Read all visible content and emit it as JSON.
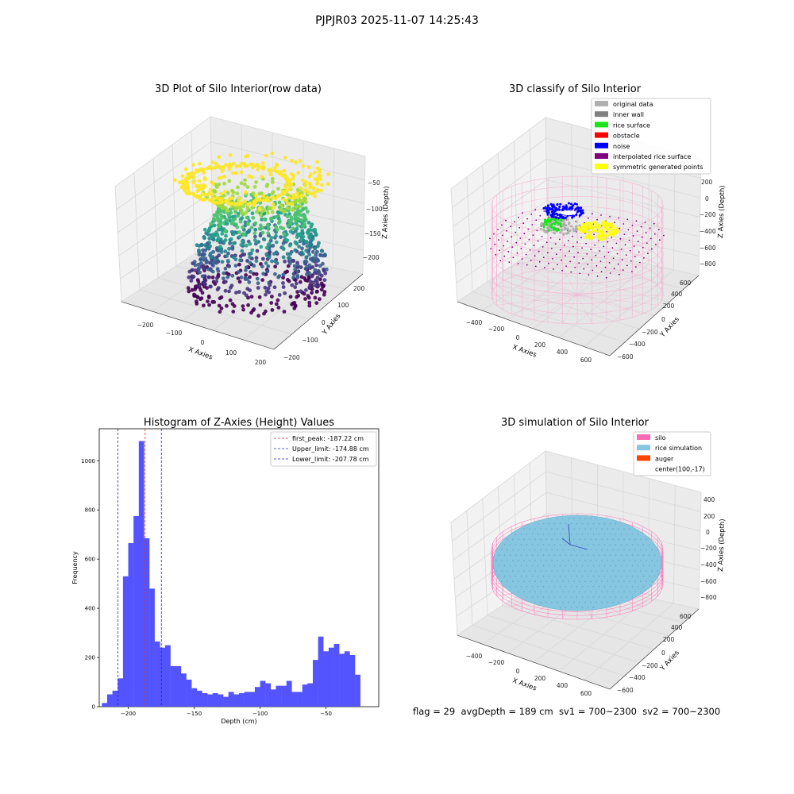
{
  "figure": {
    "title": "PJPJR03 2025-11-07 14:25:43"
  },
  "status_line": "flag = 29  avgDepth = 189 cm  sv1 = 700~2300  sv2 = 700~2300",
  "colors": {
    "hist_bar": "#4b4bff",
    "first_peak": "#e8312a",
    "limit": "#2222d8",
    "original": "#b0b0b0",
    "inner_wall": "#808080",
    "rice_surface": "#19e619",
    "obstacle": "#ff0000",
    "noise": "#0000ff",
    "interp": "#800080",
    "symmetric": "#ffff00",
    "silo": "#ff69b4",
    "rice_sim": "#87c6e0",
    "auger": "#ff4500"
  },
  "chart_data": [
    {
      "type": "scatter",
      "subtype": "3d",
      "title": "3D Plot of Silo Interior(row data)",
      "xlabel": "X Axies",
      "ylabel": "Y Axies",
      "zlabel": "Z Axies (Depth)",
      "x_ticks": [
        "−200",
        "−100",
        "0",
        "100",
        "200"
      ],
      "y_ticks": [
        "−200",
        "−100",
        "0",
        "100",
        "200"
      ],
      "z_ticks": [
        "−50",
        "−100",
        "−150",
        "−200"
      ],
      "colormap": "viridis"
    },
    {
      "type": "scatter",
      "subtype": "3d",
      "title": "3D classify of Silo Interior",
      "xlabel": "X Axies",
      "ylabel": "Y Axies",
      "zlabel": "Z Axies (Depth)",
      "x_ticks": [
        "−400",
        "−200",
        "0",
        "200",
        "400",
        "600"
      ],
      "y_ticks": [
        "−600",
        "−400",
        "−200",
        "0",
        "200",
        "400",
        "600"
      ],
      "z_ticks": [
        "200",
        "0",
        "−200",
        "−400",
        "−600",
        "−800"
      ],
      "legend": {
        "placement": "top-right",
        "entries": [
          "original data",
          "inner wall",
          "rice surface",
          "obstacle",
          "noise",
          "interpolated rice surface",
          "symmetric generated points"
        ]
      }
    },
    {
      "type": "bar",
      "subtype": "histogram",
      "title": "Histogram of Z-Axies (Height) Values",
      "xlabel": "Depth (cm)",
      "ylabel": "Frequency",
      "xlim": [
        -222,
        -10
      ],
      "ylim": [
        0,
        1130
      ],
      "x_ticks": [
        -200,
        -150,
        -100,
        -50
      ],
      "y_ticks": [
        0,
        200,
        400,
        600,
        800,
        1000
      ],
      "bin_start": -220,
      "bin_width": 4,
      "values": [
        15,
        50,
        65,
        115,
        530,
        665,
        775,
        1080,
        685,
        480,
        265,
        240,
        250,
        165,
        165,
        135,
        110,
        75,
        65,
        55,
        50,
        55,
        50,
        40,
        60,
        50,
        55,
        60,
        60,
        80,
        105,
        95,
        70,
        85,
        85,
        105,
        60,
        60,
        90,
        95,
        190,
        285,
        225,
        240,
        255,
        215,
        225,
        210,
        130
      ],
      "lines": [
        {
          "label": "first_peak: -187.22 cm",
          "x": -187.22,
          "color": "first_peak"
        },
        {
          "label": "Upper_limit: -174.88 cm",
          "x": -174.88,
          "color": "limit"
        },
        {
          "label": "Lower_limit: -207.78 cm",
          "x": -207.78,
          "color": "limit"
        }
      ],
      "grid": false,
      "legend_placement": "top-right"
    },
    {
      "type": "scatter",
      "subtype": "3d-surface",
      "title": "3D simulation of Silo Interior",
      "xlabel": "X Axies",
      "ylabel": "Y Axies",
      "zlabel": "Z Axies (Depth)",
      "x_ticks": [
        "−400",
        "−200",
        "0",
        "200",
        "400",
        "600"
      ],
      "y_ticks": [
        "−600",
        "−400",
        "−200",
        "0",
        "200",
        "400",
        "600"
      ],
      "z_ticks": [
        "400",
        "200",
        "0",
        "−200",
        "−400",
        "−600",
        "−800"
      ],
      "legend": {
        "placement": "top-right",
        "entries": [
          "silo",
          "rice simulation",
          "auger",
          "center(100,-17)"
        ]
      }
    }
  ]
}
